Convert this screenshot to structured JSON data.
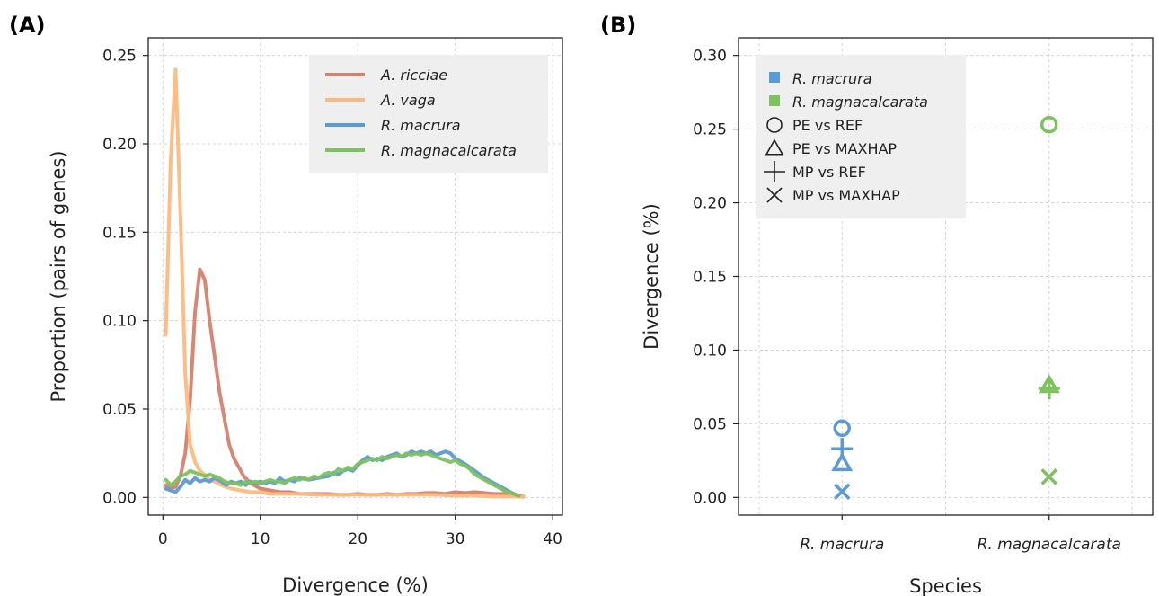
{
  "chart_data": [
    {
      "panel": "(A)",
      "type": "line",
      "xlabel": "Divergence (%)",
      "ylabel": "Proportion (pairs of genes)",
      "xlim": [
        -1.5,
        41
      ],
      "ylim": [
        -0.01,
        0.26
      ],
      "xticks": [
        0,
        10,
        20,
        30,
        40
      ],
      "yticks": [
        0.0,
        0.05,
        0.1,
        0.15,
        0.2,
        0.25
      ],
      "ytick_labels": [
        "0.00",
        "0.05",
        "0.10",
        "0.15",
        "0.20",
        "0.25"
      ],
      "grid": true,
      "legend_position": "top-right",
      "series": [
        {
          "name": "A. ricciae",
          "color": "#d4826e",
          "points": [
            [
              0.3,
              0.007
            ],
            [
              0.8,
              0.005
            ],
            [
              1.3,
              0.006
            ],
            [
              1.8,
              0.012
            ],
            [
              2.3,
              0.025
            ],
            [
              2.8,
              0.055
            ],
            [
              3.3,
              0.105
            ],
            [
              3.8,
              0.129
            ],
            [
              4.3,
              0.123
            ],
            [
              4.8,
              0.1
            ],
            [
              5.3,
              0.08
            ],
            [
              5.8,
              0.06
            ],
            [
              6.3,
              0.045
            ],
            [
              6.8,
              0.03
            ],
            [
              7.3,
              0.022
            ],
            [
              7.8,
              0.017
            ],
            [
              8.3,
              0.012
            ],
            [
              9,
              0.008
            ],
            [
              10,
              0.005
            ],
            [
              11,
              0.004
            ],
            [
              12,
              0.003
            ],
            [
              13,
              0.003
            ],
            [
              14,
              0.002
            ],
            [
              15,
              0.002
            ],
            [
              16,
              0.002
            ],
            [
              17,
              0.002
            ],
            [
              18,
              0.0015
            ],
            [
              19,
              0.0015
            ],
            [
              20,
              0.002
            ],
            [
              21,
              0.0015
            ],
            [
              22,
              0.0015
            ],
            [
              23,
              0.002
            ],
            [
              24,
              0.0015
            ],
            [
              25,
              0.002
            ],
            [
              26,
              0.002
            ],
            [
              27,
              0.0025
            ],
            [
              28,
              0.0025
            ],
            [
              29,
              0.002
            ],
            [
              30,
              0.003
            ],
            [
              31,
              0.0025
            ],
            [
              32,
              0.003
            ],
            [
              33,
              0.0025
            ],
            [
              34,
              0.002
            ],
            [
              35,
              0.002
            ],
            [
              36,
              0.001
            ],
            [
              37,
              0.0005
            ]
          ]
        },
        {
          "name": "A. vaga",
          "color": "#fdb97d",
          "points": [
            [
              0.3,
              0.092
            ],
            [
              0.8,
              0.19
            ],
            [
              1.3,
              0.242
            ],
            [
              1.8,
              0.16
            ],
            [
              2.3,
              0.07
            ],
            [
              2.8,
              0.03
            ],
            [
              3.3,
              0.02
            ],
            [
              3.8,
              0.015
            ],
            [
              4.3,
              0.013
            ],
            [
              4.8,
              0.01
            ],
            [
              5.3,
              0.009
            ],
            [
              6,
              0.007
            ],
            [
              7,
              0.005
            ],
            [
              8,
              0.004
            ],
            [
              9,
              0.003
            ],
            [
              10,
              0.003
            ],
            [
              11,
              0.002
            ],
            [
              12,
              0.002
            ],
            [
              14,
              0.002
            ],
            [
              16,
              0.0015
            ],
            [
              18,
              0.0015
            ],
            [
              20,
              0.0015
            ],
            [
              22,
              0.0015
            ],
            [
              24,
              0.0015
            ],
            [
              26,
              0.0015
            ],
            [
              28,
              0.0015
            ],
            [
              30,
              0.001
            ],
            [
              32,
              0.001
            ],
            [
              34,
              0.0005
            ],
            [
              36,
              0.0005
            ],
            [
              37,
              0.0003
            ]
          ]
        },
        {
          "name": "R. macrura",
          "color": "#5b9bd5",
          "points": [
            [
              0.3,
              0.005
            ],
            [
              0.8,
              0.004
            ],
            [
              1.3,
              0.003
            ],
            [
              1.8,
              0.006
            ],
            [
              2.3,
              0.01
            ],
            [
              2.8,
              0.008
            ],
            [
              3.3,
              0.011
            ],
            [
              3.8,
              0.009
            ],
            [
              4.3,
              0.01
            ],
            [
              4.8,
              0.009
            ],
            [
              5.3,
              0.011
            ],
            [
              6,
              0.009
            ],
            [
              6.5,
              0.007
            ],
            [
              7,
              0.009
            ],
            [
              7.5,
              0.008
            ],
            [
              8,
              0.009
            ],
            [
              8.5,
              0.007
            ],
            [
              9,
              0.009
            ],
            [
              9.5,
              0.008
            ],
            [
              10,
              0.009
            ],
            [
              10.5,
              0.008
            ],
            [
              11,
              0.009
            ],
            [
              11.5,
              0.008
            ],
            [
              12,
              0.011
            ],
            [
              12.5,
              0.009
            ],
            [
              13,
              0.01
            ],
            [
              13.5,
              0.009
            ],
            [
              14,
              0.011
            ],
            [
              15,
              0.01
            ],
            [
              16,
              0.011
            ],
            [
              17,
              0.012
            ],
            [
              17.5,
              0.014
            ],
            [
              18,
              0.013
            ],
            [
              18.5,
              0.015
            ],
            [
              19,
              0.016
            ],
            [
              19.5,
              0.015
            ],
            [
              20,
              0.018
            ],
            [
              20.5,
              0.021
            ],
            [
              21,
              0.023
            ],
            [
              21.5,
              0.021
            ],
            [
              22,
              0.022
            ],
            [
              22.5,
              0.021
            ],
            [
              23,
              0.023
            ],
            [
              23.5,
              0.024
            ],
            [
              24,
              0.025
            ],
            [
              24.5,
              0.023
            ],
            [
              25,
              0.024
            ],
            [
              25.5,
              0.026
            ],
            [
              26,
              0.025
            ],
            [
              26.5,
              0.026
            ],
            [
              27,
              0.025
            ],
            [
              27.5,
              0.026
            ],
            [
              28,
              0.024
            ],
            [
              28.5,
              0.025
            ],
            [
              29,
              0.026
            ],
            [
              29.5,
              0.025
            ],
            [
              30,
              0.022
            ],
            [
              31,
              0.019
            ],
            [
              32,
              0.015
            ],
            [
              33,
              0.011
            ],
            [
              34,
              0.008
            ],
            [
              35,
              0.005
            ],
            [
              36,
              0.002
            ],
            [
              36.5,
              0.001
            ]
          ]
        },
        {
          "name": "R. magnacalcarata",
          "color": "#7dc25f",
          "points": [
            [
              0.3,
              0.01
            ],
            [
              0.8,
              0.007
            ],
            [
              1.3,
              0.009
            ],
            [
              1.8,
              0.012
            ],
            [
              2.3,
              0.013
            ],
            [
              2.8,
              0.015
            ],
            [
              3.3,
              0.014
            ],
            [
              3.8,
              0.013
            ],
            [
              4.3,
              0.012
            ],
            [
              4.8,
              0.013
            ],
            [
              5.3,
              0.012
            ],
            [
              5.8,
              0.011
            ],
            [
              6.3,
              0.009
            ],
            [
              7,
              0.008
            ],
            [
              7.5,
              0.008
            ],
            [
              8,
              0.007
            ],
            [
              8.5,
              0.009
            ],
            [
              9,
              0.008
            ],
            [
              9.5,
              0.009
            ],
            [
              10,
              0.008
            ],
            [
              10.5,
              0.009
            ],
            [
              11,
              0.01
            ],
            [
              11.5,
              0.009
            ],
            [
              12,
              0.009
            ],
            [
              12.5,
              0.008
            ],
            [
              13,
              0.01
            ],
            [
              13.5,
              0.011
            ],
            [
              14,
              0.01
            ],
            [
              14.5,
              0.011
            ],
            [
              15,
              0.01
            ],
            [
              15.5,
              0.012
            ],
            [
              16,
              0.011
            ],
            [
              16.5,
              0.013
            ],
            [
              17,
              0.014
            ],
            [
              17.5,
              0.013
            ],
            [
              18,
              0.016
            ],
            [
              18.5,
              0.015
            ],
            [
              19,
              0.017
            ],
            [
              19.5,
              0.016
            ],
            [
              20,
              0.019
            ],
            [
              20.5,
              0.02
            ],
            [
              21,
              0.021
            ],
            [
              21.5,
              0.022
            ],
            [
              22,
              0.021
            ],
            [
              22.5,
              0.023
            ],
            [
              23,
              0.022
            ],
            [
              23.5,
              0.023
            ],
            [
              24,
              0.024
            ],
            [
              24.5,
              0.023
            ],
            [
              25,
              0.025
            ],
            [
              25.5,
              0.024
            ],
            [
              26,
              0.025
            ],
            [
              26.5,
              0.024
            ],
            [
              27,
              0.025
            ],
            [
              27.5,
              0.024
            ],
            [
              28,
              0.023
            ],
            [
              28.5,
              0.022
            ],
            [
              29,
              0.021
            ],
            [
              29.5,
              0.02
            ],
            [
              30,
              0.021
            ],
            [
              30.5,
              0.019
            ],
            [
              31,
              0.018
            ],
            [
              31.5,
              0.016
            ],
            [
              32,
              0.013
            ],
            [
              33,
              0.01
            ],
            [
              34,
              0.007
            ],
            [
              35,
              0.004
            ],
            [
              36,
              0.002
            ],
            [
              36.5,
              0.001
            ]
          ]
        }
      ]
    },
    {
      "panel": "(B)",
      "type": "scatter",
      "xlabel": "Species",
      "ylabel": "Divergence (%)",
      "categories": [
        "R. macrura",
        "R. magnacalcarata"
      ],
      "xlim": [
        -0.5,
        1.5
      ],
      "ylim": [
        -0.012,
        0.312
      ],
      "yticks": [
        0.0,
        0.05,
        0.1,
        0.15,
        0.2,
        0.25,
        0.3
      ],
      "ytick_labels": [
        "0.00",
        "0.05",
        "0.10",
        "0.15",
        "0.20",
        "0.25",
        "0.30"
      ],
      "grid": true,
      "legend_position": "top-left",
      "species_colors": [
        {
          "name": "R. macrura",
          "color": "#5b9bd5"
        },
        {
          "name": "R. magnacalcarata",
          "color": "#7dc25f"
        }
      ],
      "markers": [
        {
          "name": "PE vs REF",
          "shape": "circle"
        },
        {
          "name": "PE vs MAXHAP",
          "shape": "triangle"
        },
        {
          "name": "MP vs REF",
          "shape": "plus"
        },
        {
          "name": "MP vs MAXHAP",
          "shape": "x"
        }
      ],
      "points": [
        {
          "species": "R. macrura",
          "comparison": "PE vs REF",
          "value": 0.047
        },
        {
          "species": "R. macrura",
          "comparison": "PE vs MAXHAP",
          "value": 0.023
        },
        {
          "species": "R. macrura",
          "comparison": "MP vs REF",
          "value": 0.033
        },
        {
          "species": "R. macrura",
          "comparison": "MP vs MAXHAP",
          "value": 0.004
        },
        {
          "species": "R. magnacalcarata",
          "comparison": "PE vs REF",
          "value": 0.253
        },
        {
          "species": "R. magnacalcarata",
          "comparison": "PE vs MAXHAP",
          "value": 0.076
        },
        {
          "species": "R. magnacalcarata",
          "comparison": "MP vs REF",
          "value": 0.074
        },
        {
          "species": "R. magnacalcarata",
          "comparison": "MP vs MAXHAP",
          "value": 0.014
        }
      ]
    }
  ]
}
